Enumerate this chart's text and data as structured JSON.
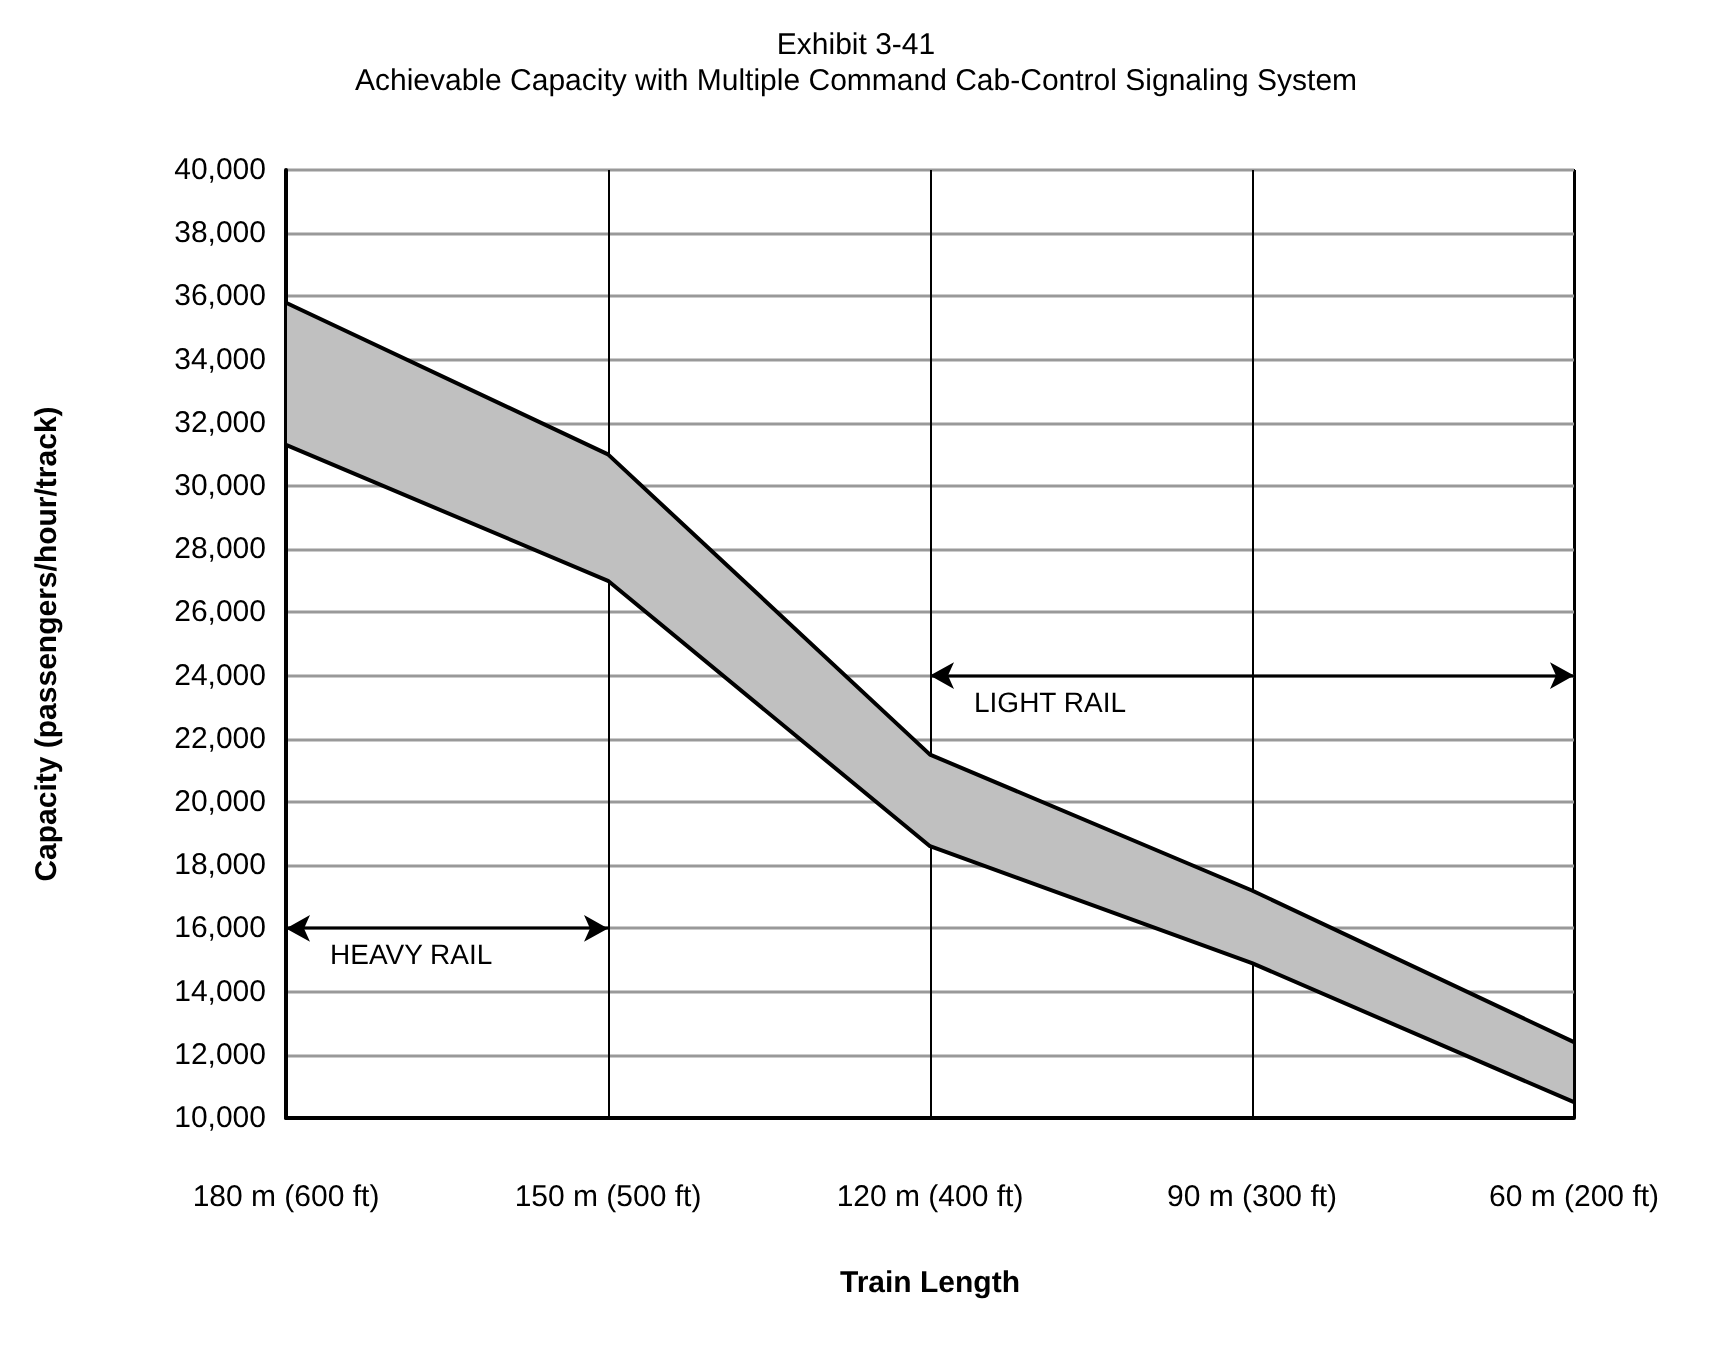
{
  "chart_data": {
    "type": "line",
    "title": "Exhibit 3-41",
    "subtitle": "Achievable Capacity with Multiple Command Cab-Control Signaling System",
    "xlabel": "Train Length",
    "ylabel": "Capacity (passengers/hour/track)",
    "categories": [
      "180 m (600 ft)",
      "150 m (500 ft)",
      "120 m (400 ft)",
      "90 m (300 ft)",
      "60 m (200 ft)"
    ],
    "series": [
      {
        "color": "#000000",
        "values": [
          35800,
          31000,
          21500,
          17200,
          12400
        ],
        "lower": [
          31300,
          27000,
          18600,
          14900,
          10500
        ],
        "upper": [
          35800,
          31000,
          21500,
          17200,
          12400
        ]
      },
      {
        "color": "#000000",
        "values": [
          31300,
          27000,
          18600,
          14900,
          10500
        ]
      }
    ],
    "ylim": [
      10000,
      40000
    ],
    "yticks": [
      {
        "value": 10000,
        "label": "10,000"
      },
      {
        "value": 12000,
        "label": "12,000"
      },
      {
        "value": 14000,
        "label": "14,000"
      },
      {
        "value": 16000,
        "label": "16,000"
      },
      {
        "value": 18000,
        "label": "18,000"
      },
      {
        "value": 20000,
        "label": "20,000"
      },
      {
        "value": 22000,
        "label": "22,000"
      },
      {
        "value": 24000,
        "label": "24,000"
      },
      {
        "value": 26000,
        "label": "26,000"
      },
      {
        "value": 28000,
        "label": "28,000"
      },
      {
        "value": 30000,
        "label": "30,000"
      },
      {
        "value": 32000,
        "label": "32,000"
      },
      {
        "value": 34000,
        "label": "34,000"
      },
      {
        "value": 36000,
        "label": "36,000"
      },
      {
        "value": 38000,
        "label": "38,000"
      },
      {
        "value": 40000,
        "label": "40,000"
      }
    ],
    "annotations": [
      "HEAVY RAIL",
      "LIGHT RAIL"
    ],
    "grid": true,
    "marker": "none",
    "line_style": "solid"
  }
}
